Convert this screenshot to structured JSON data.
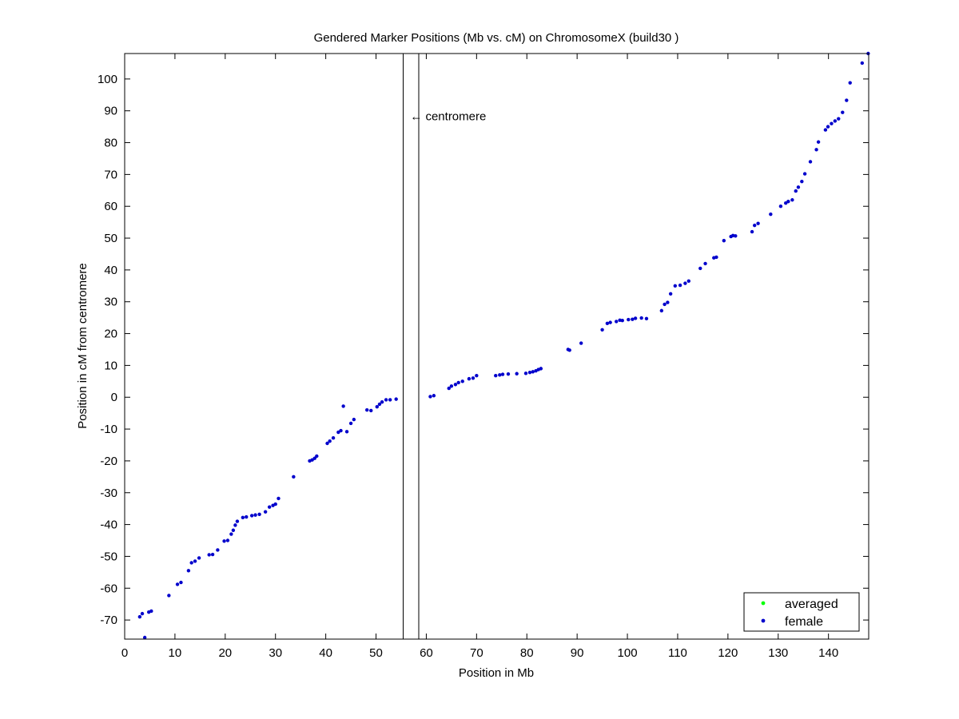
{
  "chart_data": {
    "type": "scatter",
    "title": "Gendered Marker Positions (Mb vs. cM) on ChromosomeX (build30 )",
    "xlabel": "Position in Mb",
    "ylabel": "Position in cM from centromere",
    "xlim": [
      0,
      148
    ],
    "ylim": [
      -76,
      108
    ],
    "xticks": [
      0,
      10,
      20,
      30,
      40,
      50,
      60,
      70,
      80,
      90,
      100,
      110,
      120,
      130,
      140
    ],
    "yticks": [
      -70,
      -60,
      -50,
      -40,
      -30,
      -20,
      -10,
      0,
      10,
      20,
      30,
      40,
      50,
      60,
      70,
      80,
      90,
      100
    ],
    "grid": false,
    "legend_position": "bottom-right",
    "annotation": {
      "text": "← centromere",
      "x": 56.8,
      "y": 88
    },
    "centromere_lines": [
      55.4,
      58.5
    ],
    "colors": {
      "averaged": "#00ff00",
      "female": "#0000cc",
      "axes": "#000000"
    },
    "series": [
      {
        "name": "averaged",
        "x": [],
        "y": []
      },
      {
        "name": "female",
        "x": [
          3.0,
          3.5,
          4.0,
          4.8,
          5.3,
          8.8,
          10.5,
          11.2,
          12.7,
          13.3,
          14.0,
          14.8,
          16.8,
          17.5,
          18.5,
          19.8,
          20.5,
          21.2,
          21.6,
          22.0,
          22.4,
          23.5,
          24.2,
          25.3,
          26.0,
          26.8,
          28.0,
          28.8,
          29.5,
          30.0,
          30.6,
          33.6,
          36.8,
          37.3,
          37.8,
          38.2,
          40.3,
          40.8,
          41.5,
          42.5,
          43.0,
          43.5,
          44.2,
          45.0,
          45.6,
          48.2,
          49.0,
          50.2,
          50.7,
          51.2,
          52.0,
          52.8,
          54.0,
          60.8,
          61.5,
          64.5,
          65.0,
          65.8,
          66.4,
          67.2,
          68.5,
          69.3,
          70.0,
          73.8,
          74.6,
          75.2,
          76.3,
          78.0,
          79.8,
          80.6,
          81.2,
          81.8,
          82.3,
          82.8,
          88.2,
          88.5,
          90.8,
          95.0,
          96.0,
          96.6,
          97.8,
          98.5,
          99.0,
          100.2,
          101.0,
          101.6,
          102.8,
          103.8,
          106.8,
          107.4,
          108.0,
          108.6,
          109.5,
          110.5,
          111.5,
          112.2,
          114.5,
          115.5,
          117.2,
          117.7,
          119.2,
          120.6,
          121.0,
          121.5,
          124.8,
          125.3,
          126.0,
          128.5,
          130.5,
          131.5,
          132.0,
          132.8,
          133.5,
          134.0,
          134.7,
          135.3,
          136.4,
          137.6,
          138.0,
          139.4,
          139.9,
          140.6,
          141.3,
          142.0,
          142.8,
          143.6,
          144.3,
          146.7,
          147.9
        ],
        "y": [
          -69,
          -68,
          -75.5,
          -67.5,
          -67.2,
          -62.3,
          -58.8,
          -58.2,
          -54.5,
          -52.0,
          -51.5,
          -50.5,
          -49.5,
          -49.4,
          -48.0,
          -45.2,
          -45.0,
          -43.0,
          -41.8,
          -40.2,
          -39.0,
          -37.8,
          -37.6,
          -37.2,
          -37.0,
          -36.8,
          -36.0,
          -34.5,
          -34.0,
          -33.6,
          -31.8,
          -25.0,
          -20.0,
          -19.7,
          -19.2,
          -18.5,
          -14.5,
          -13.8,
          -12.8,
          -11.0,
          -10.5,
          -2.8,
          -10.8,
          -8.2,
          -7.0,
          -4.0,
          -4.2,
          -3.0,
          -2.2,
          -1.5,
          -0.8,
          -0.8,
          -0.6,
          0.2,
          0.5,
          2.8,
          3.5,
          4.0,
          4.6,
          5.0,
          5.8,
          6.0,
          6.8,
          6.8,
          7.0,
          7.2,
          7.3,
          7.4,
          7.5,
          7.8,
          8.0,
          8.3,
          8.7,
          9.0,
          15.0,
          14.8,
          17.0,
          21.2,
          23.2,
          23.5,
          23.8,
          24.2,
          24.1,
          24.4,
          24.5,
          24.8,
          24.9,
          24.7,
          27.2,
          29.2,
          29.8,
          32.5,
          35.0,
          35.2,
          35.8,
          36.5,
          40.5,
          42.0,
          43.8,
          44.0,
          49.2,
          50.5,
          50.8,
          50.7,
          52.0,
          54.0,
          54.6,
          57.5,
          60.0,
          61.0,
          61.5,
          62.0,
          64.8,
          66.0,
          67.8,
          70.2,
          74.0,
          77.8,
          80.2,
          84.0,
          85.0,
          86.0,
          86.8,
          87.5,
          89.5,
          93.3,
          98.8,
          105.0,
          108.0
        ]
      }
    ]
  }
}
